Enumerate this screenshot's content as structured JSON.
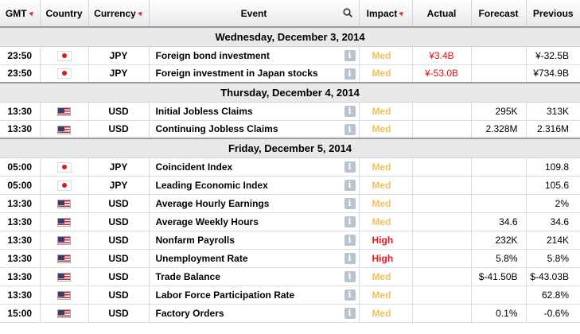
{
  "headers": {
    "gmt": "GMT",
    "country": "Country",
    "currency": "Currency",
    "event": "Event",
    "impact": "Impact",
    "actual": "Actual",
    "forecast": "Forecast",
    "previous": "Previous"
  },
  "days": [
    {
      "label": "Wednesday, December 3, 2014",
      "rows": [
        {
          "time": "23:50",
          "flag": "jp-flag-icon",
          "currency": "JPY",
          "event": "Foreign bond investment",
          "impact": "Med",
          "actual": "¥3.4B",
          "forecast": "",
          "previous": "¥-32.5B"
        },
        {
          "time": "23:50",
          "flag": "jp-flag-icon",
          "currency": "JPY",
          "event": "Foreign investment in Japan stocks",
          "impact": "Med",
          "actual": "¥-53.0B",
          "forecast": "",
          "previous": "¥734.9B"
        }
      ]
    },
    {
      "label": "Thursday, December 4, 2014",
      "rows": [
        {
          "time": "13:30",
          "flag": "us-flag-icon",
          "currency": "USD",
          "event": "Initial Jobless Claims",
          "impact": "Med",
          "actual": "",
          "forecast": "295K",
          "previous": "313K"
        },
        {
          "time": "13:30",
          "flag": "us-flag-icon",
          "currency": "USD",
          "event": "Continuing Jobless Claims",
          "impact": "Med",
          "actual": "",
          "forecast": "2.328M",
          "previous": "2.316M"
        }
      ]
    },
    {
      "label": "Friday, December 5, 2014",
      "rows": [
        {
          "time": "05:00",
          "flag": "jp-flag-icon",
          "currency": "JPY",
          "event": "Coincident Index",
          "impact": "Med",
          "actual": "",
          "forecast": "",
          "previous": "109.8"
        },
        {
          "time": "05:00",
          "flag": "jp-flag-icon",
          "currency": "JPY",
          "event": "Leading Economic Index",
          "impact": "Med",
          "actual": "",
          "forecast": "",
          "previous": "105.6"
        },
        {
          "time": "13:30",
          "flag": "us-flag-icon",
          "currency": "USD",
          "event": "Average Hourly Earnings",
          "impact": "Med",
          "actual": "",
          "forecast": "",
          "previous": "2%"
        },
        {
          "time": "13:30",
          "flag": "us-flag-icon",
          "currency": "USD",
          "event": "Average Weekly Hours",
          "impact": "Med",
          "actual": "",
          "forecast": "34.6",
          "previous": "34.6"
        },
        {
          "time": "13:30",
          "flag": "us-flag-icon",
          "currency": "USD",
          "event": "Nonfarm Payrolls",
          "impact": "High",
          "actual": "",
          "forecast": "232K",
          "previous": "214K"
        },
        {
          "time": "13:30",
          "flag": "us-flag-icon",
          "currency": "USD",
          "event": "Unemployment Rate",
          "impact": "High",
          "actual": "",
          "forecast": "5.8%",
          "previous": "5.8%"
        },
        {
          "time": "13:30",
          "flag": "us-flag-icon",
          "currency": "USD",
          "event": "Trade Balance",
          "impact": "Med",
          "actual": "",
          "forecast": "$-41.50B",
          "previous": "$-43.03B"
        },
        {
          "time": "13:30",
          "flag": "us-flag-icon",
          "currency": "USD",
          "event": "Labor Force Participation Rate",
          "impact": "Med",
          "actual": "",
          "forecast": "",
          "previous": "62.8%"
        },
        {
          "time": "15:00",
          "flag": "us-flag-icon",
          "currency": "USD",
          "event": "Factory Orders",
          "impact": "Med",
          "actual": "",
          "forecast": "0.1%",
          "previous": "-0.6%"
        }
      ]
    }
  ],
  "colors": {
    "med": "#f1c15d",
    "high": "#e8151b",
    "actual": "#e01010"
  }
}
